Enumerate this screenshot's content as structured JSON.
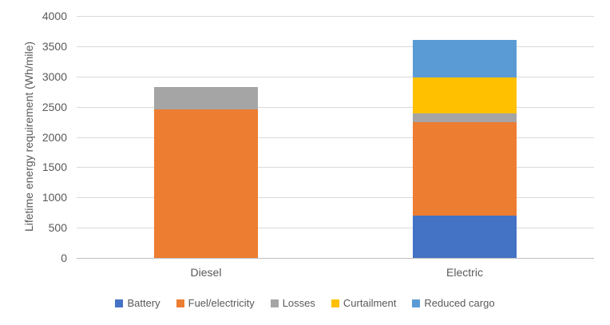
{
  "chart_data": {
    "type": "bar",
    "stacked": true,
    "title": "",
    "categories": [
      "Diesel",
      "Electric"
    ],
    "series": [
      {
        "name": "Battery",
        "color": "#4472C4",
        "values": [
          0,
          700
        ]
      },
      {
        "name": "Fuel/electricity",
        "color": "#ED7D31",
        "values": [
          2450,
          1540
        ]
      },
      {
        "name": "Losses",
        "color": "#A5A5A5",
        "values": [
          380,
          150
        ]
      },
      {
        "name": "Curtailment",
        "color": "#FFC000",
        "values": [
          0,
          600
        ]
      },
      {
        "name": "Reduced cargo",
        "color": "#5B9BD5",
        "values": [
          0,
          610
        ]
      }
    ],
    "totals": {
      "Diesel": 2830,
      "Electric": 3600
    },
    "xlabel": "",
    "ylabel": "Lifetime energy requirement (Wh/mile)",
    "ylim": [
      0,
      4000
    ],
    "ytick_step": 500,
    "yticks": [
      0,
      500,
      1000,
      1500,
      2000,
      2500,
      3000,
      3500,
      4000
    ],
    "grid": true,
    "legend_position": "bottom",
    "grid_color": "#D9D9D9",
    "axis_line_color": "#BFBFBF",
    "text_color": "#595959",
    "background_color": "#FFFFFF"
  }
}
